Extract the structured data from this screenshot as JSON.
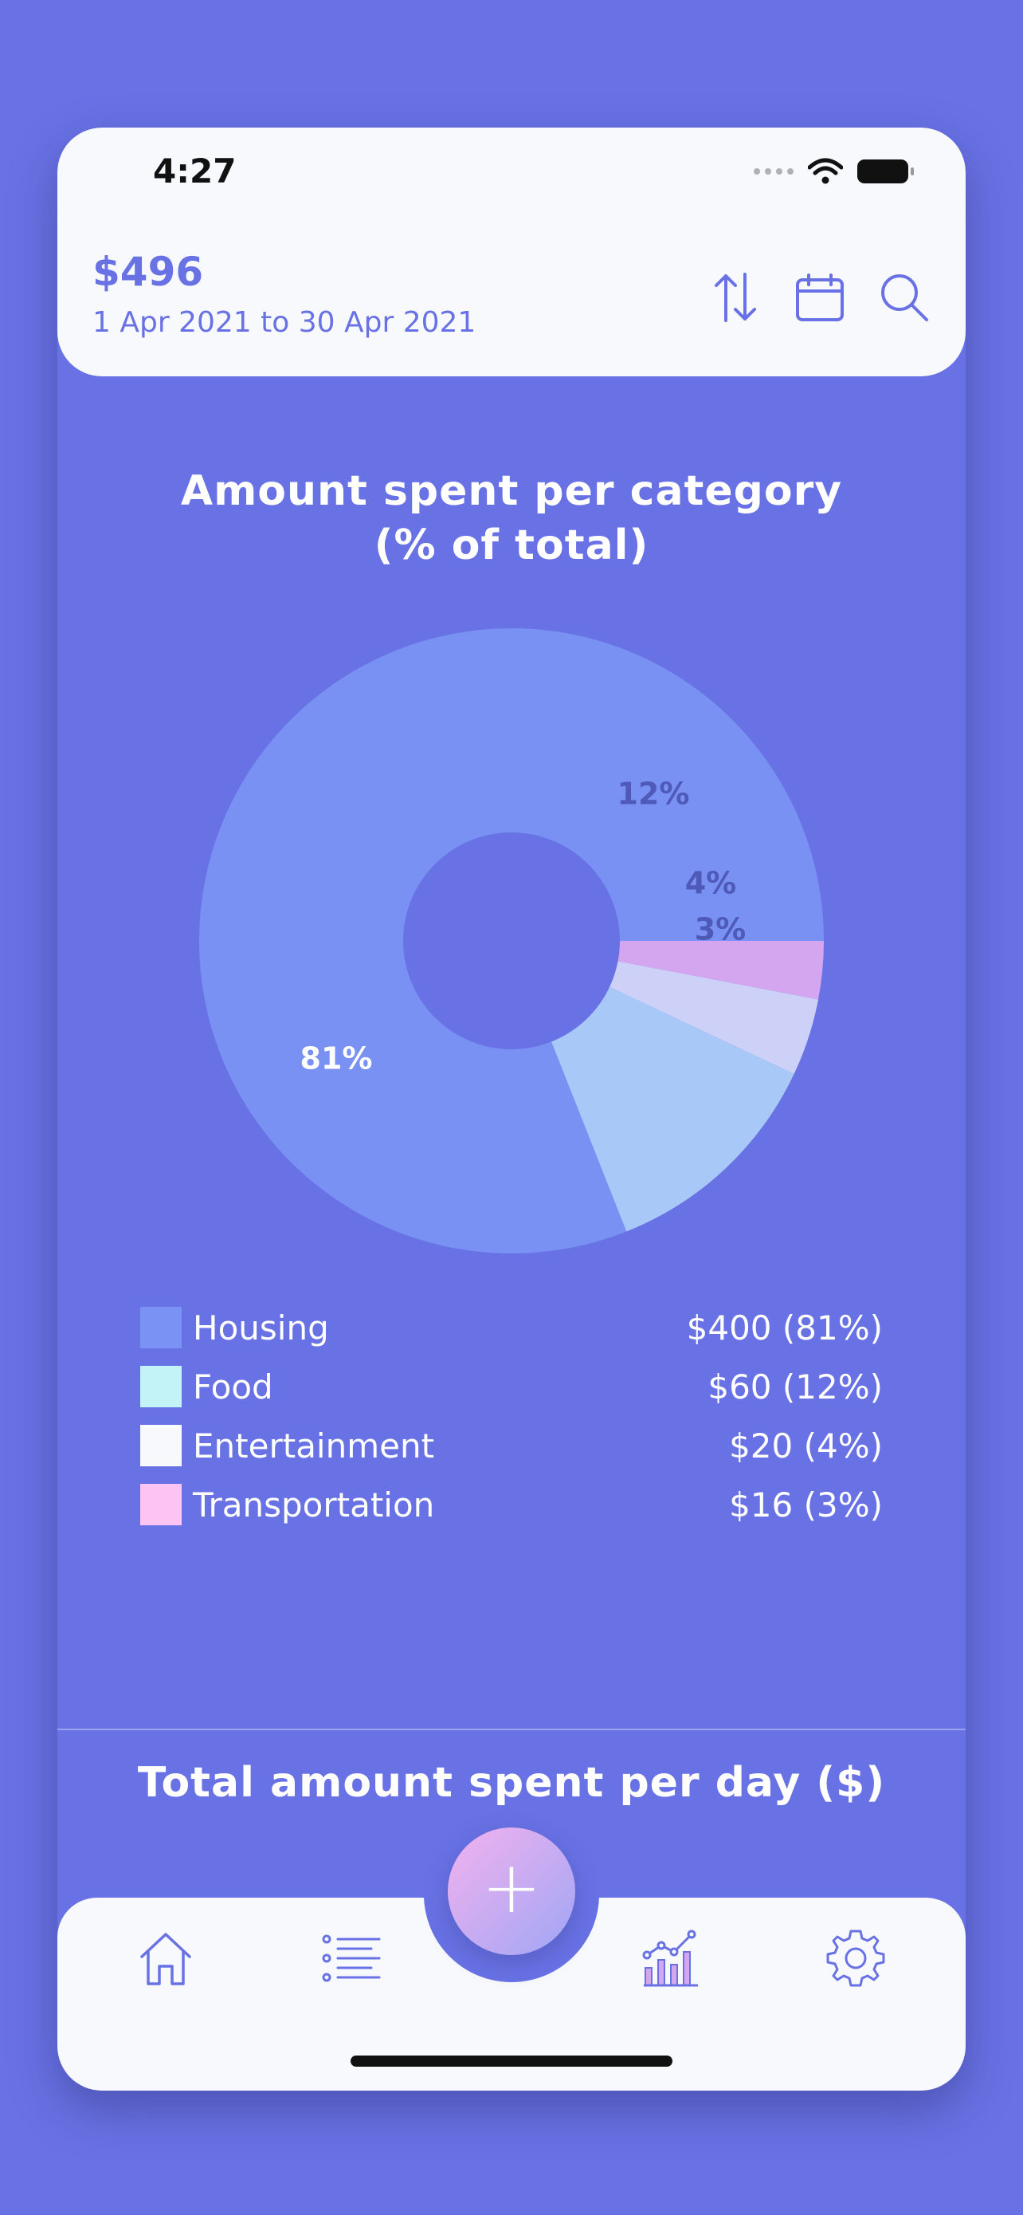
{
  "status_bar": {
    "time": "4:27"
  },
  "header": {
    "total": "$496",
    "date_range": "1 Apr 2021 to 30 Apr 2021",
    "actions": [
      "sort-icon",
      "calendar-icon",
      "search-icon"
    ]
  },
  "category_chart": {
    "title_line1": "Amount spent per category",
    "title_line2": "(% of total)"
  },
  "chart_data": {
    "type": "pie",
    "title": "Amount spent per category (% of total)",
    "categories": [
      "Housing",
      "Food",
      "Entertainment",
      "Transportation"
    ],
    "values": [
      81,
      12,
      4,
      3
    ],
    "amounts": [
      400,
      60,
      20,
      16
    ],
    "labels": [
      "81%",
      "12%",
      "4%",
      "3%"
    ],
    "slice_colors": [
      "#7891f3",
      "#a8c8f7",
      "#cdd0f7",
      "#d4a6ef"
    ],
    "donut": true
  },
  "legend": [
    {
      "name": "Housing",
      "value": "$400 (81%)",
      "color": "#7b92f5"
    },
    {
      "name": "Food",
      "value": "$60 (12%)",
      "color": "#c4f3f7"
    },
    {
      "name": "Entertainment",
      "value": "$20 (4%)",
      "color": "#f8f9fc"
    },
    {
      "name": "Transportation",
      "value": "$16 (3%)",
      "color": "#fdc3f2"
    }
  ],
  "daily_chart": {
    "title": "Total amount spent per day ($)"
  },
  "tabbar": {
    "tabs": [
      "home-icon",
      "list-icon",
      "stats-icon",
      "settings-icon"
    ],
    "fab": "+"
  },
  "colors": {
    "background": "#6872e4",
    "surface": "#f8f9fc",
    "accent": "#6872e4"
  }
}
